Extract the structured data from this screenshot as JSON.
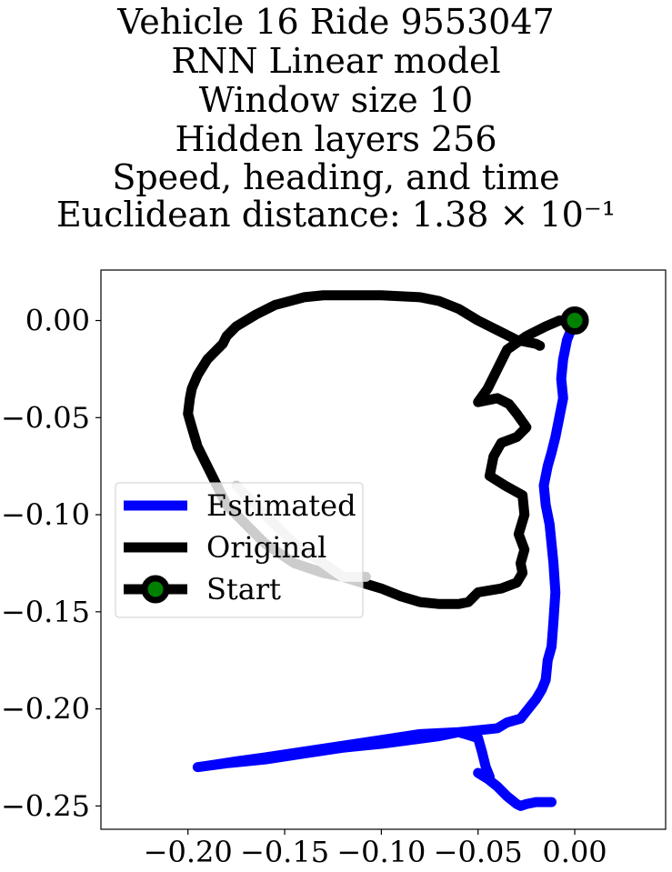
{
  "title_lines": [
    "Vehicle 16 Ride 9553047",
    "RNN Linear model",
    "Window size 10",
    "Hidden layers 256",
    "Speed, heading, and time",
    "Euclidean distance: 1.38 × 10⁻¹"
  ],
  "chart_data": {
    "type": "line",
    "title": "Vehicle 16 Ride 9553047 / RNN Linear model / Window size 10 / Hidden layers 256 / Speed, heading, and time / Euclidean distance: 1.38 × 10⁻¹",
    "xlabel": "",
    "ylabel": "",
    "xlim": [
      -0.245,
      0.047
    ],
    "ylim": [
      -0.262,
      0.026
    ],
    "x_ticks": [
      -0.2,
      -0.15,
      -0.1,
      -0.05,
      0.0
    ],
    "x_tick_labels": [
      "−0.20",
      "−0.15",
      "−0.10",
      "−0.05",
      "0.00"
    ],
    "y_ticks": [
      0.0,
      -0.05,
      -0.1,
      -0.15,
      -0.2,
      -0.25
    ],
    "y_tick_labels": [
      "0.00",
      "−0.05",
      "−0.10",
      "−0.15",
      "−0.20",
      "−0.25"
    ],
    "grid": false,
    "legend_position": "center-left",
    "series": [
      {
        "name": "Estimated",
        "color": "#0000ff",
        "x": [
          0.0,
          -0.004,
          -0.006,
          -0.007,
          -0.006,
          -0.008,
          -0.01,
          -0.012,
          -0.014,
          -0.016,
          -0.015,
          -0.013,
          -0.012,
          -0.011,
          -0.01,
          -0.011,
          -0.012,
          -0.014,
          -0.015,
          -0.017,
          -0.02,
          -0.024,
          -0.028,
          -0.035,
          -0.04,
          -0.05,
          -0.06,
          -0.07,
          -0.085,
          -0.1,
          -0.12,
          -0.14,
          -0.16,
          -0.18,
          -0.195,
          -0.188,
          -0.175,
          -0.16,
          -0.14,
          -0.12,
          -0.1,
          -0.08,
          -0.06,
          -0.05,
          -0.048,
          -0.046,
          -0.044,
          -0.05,
          -0.045,
          -0.04,
          -0.035,
          -0.03,
          -0.028,
          -0.025,
          -0.02,
          -0.015,
          -0.012
        ],
        "y": [
          0.0,
          -0.01,
          -0.02,
          -0.03,
          -0.04,
          -0.05,
          -0.06,
          -0.068,
          -0.075,
          -0.085,
          -0.095,
          -0.105,
          -0.115,
          -0.125,
          -0.14,
          -0.155,
          -0.168,
          -0.175,
          -0.185,
          -0.19,
          -0.195,
          -0.2,
          -0.205,
          -0.207,
          -0.21,
          -0.211,
          -0.212,
          -0.214,
          -0.216,
          -0.218,
          -0.22,
          -0.223,
          -0.226,
          -0.228,
          -0.23,
          -0.229,
          -0.227,
          -0.225,
          -0.222,
          -0.219,
          -0.216,
          -0.213,
          -0.212,
          -0.215,
          -0.222,
          -0.23,
          -0.235,
          -0.233,
          -0.236,
          -0.24,
          -0.245,
          -0.249,
          -0.25,
          -0.249,
          -0.248,
          -0.248,
          -0.248
        ]
      },
      {
        "name": "Original",
        "color": "#000000",
        "x": [
          0.0,
          -0.008,
          -0.015,
          -0.025,
          -0.035,
          -0.04,
          -0.045,
          -0.05,
          -0.04,
          -0.034,
          -0.03,
          -0.025,
          -0.03,
          -0.038,
          -0.042,
          -0.044,
          -0.036,
          -0.027,
          -0.026,
          -0.029,
          -0.026,
          -0.028,
          -0.027,
          -0.03,
          -0.038,
          -0.05,
          -0.053,
          -0.055,
          -0.06,
          -0.07,
          -0.08,
          -0.09,
          -0.1,
          -0.11,
          -0.12,
          -0.13,
          -0.145,
          -0.16,
          -0.17,
          -0.18,
          -0.185,
          -0.19,
          -0.195,
          -0.198,
          -0.2,
          -0.199,
          -0.198,
          -0.195,
          -0.19,
          -0.185,
          -0.182,
          -0.18,
          -0.175,
          -0.165,
          -0.155,
          -0.14,
          -0.13,
          -0.12,
          -0.1,
          -0.08,
          -0.07,
          -0.06,
          -0.055,
          -0.05,
          -0.04,
          -0.03,
          -0.02,
          -0.018
        ],
        "y": [
          0.0,
          0.0,
          -0.003,
          -0.008,
          -0.015,
          -0.025,
          -0.035,
          -0.042,
          -0.04,
          -0.043,
          -0.048,
          -0.055,
          -0.06,
          -0.063,
          -0.07,
          -0.08,
          -0.085,
          -0.09,
          -0.1,
          -0.11,
          -0.118,
          -0.125,
          -0.13,
          -0.135,
          -0.138,
          -0.14,
          -0.143,
          -0.145,
          -0.146,
          -0.146,
          -0.145,
          -0.142,
          -0.138,
          -0.135,
          -0.132,
          -0.13,
          -0.125,
          -0.115,
          -0.105,
          -0.095,
          -0.085,
          -0.075,
          -0.065,
          -0.055,
          -0.048,
          -0.04,
          -0.035,
          -0.028,
          -0.02,
          -0.015,
          -0.012,
          -0.008,
          -0.003,
          0.003,
          0.008,
          0.012,
          0.013,
          0.013,
          0.013,
          0.012,
          0.01,
          0.006,
          0.003,
          0.0,
          -0.005,
          -0.01,
          -0.012,
          -0.013
        ]
      },
      {
        "name": "Start",
        "color": "#000000",
        "marker_color": "#008000",
        "x": [
          0.0
        ],
        "y": [
          0.0
        ]
      }
    ],
    "highlight_segment": {
      "color": "#cccccc",
      "x": [
        -0.175,
        -0.16,
        -0.145,
        -0.13,
        -0.12,
        -0.108
      ],
      "y": [
        -0.085,
        -0.1,
        -0.115,
        -0.125,
        -0.132,
        -0.132
      ]
    }
  }
}
